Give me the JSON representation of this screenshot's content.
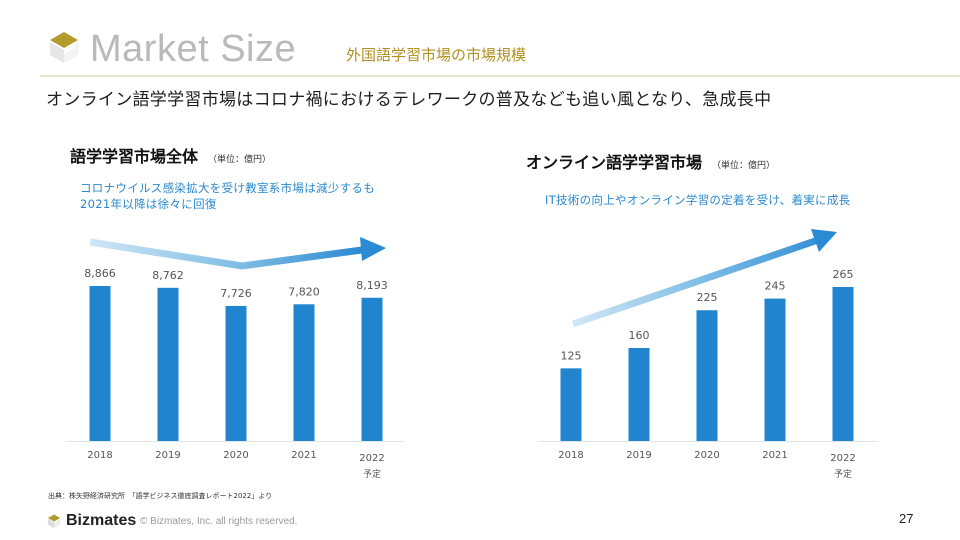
{
  "header": {
    "title": "Market Size",
    "subtitle": "外国語学習市場の市場規模",
    "accent_color": "#b09021"
  },
  "headline": "オンライン語学学習市場はコロナ禍におけるテレワークの普及なども追い風となり、急成長中",
  "charts": {
    "left": {
      "title": "語学学習市場全体",
      "unit": "（単位：億円）",
      "note": "コロナウイルス感染拡大を受け教室系市場は減少するも2021年以降は徐々に回復"
    },
    "right": {
      "title": "オンライン語学学習市場",
      "unit": "（単位：億円）",
      "note": "IT技術の向上やオンライン学習の定着を受け、着実に成長"
    }
  },
  "chart_data": [
    {
      "type": "bar",
      "title": "語学学習市場全体",
      "unit": "億円",
      "categories": [
        "2018",
        "2019",
        "2020",
        "2021",
        "2022"
      ],
      "category_sublabels": [
        "",
        "",
        "",
        "",
        "予定"
      ],
      "values": [
        8866,
        8762,
        7726,
        7820,
        8193
      ],
      "value_labels": [
        "8,866",
        "8,762",
        "7,726",
        "7,820",
        "8,193"
      ],
      "ylim": [
        0,
        8866
      ],
      "grid": false,
      "bar_color": "#2184cf",
      "trend_arrow": "down-then-up"
    },
    {
      "type": "bar",
      "title": "オンライン語学学習市場",
      "unit": "億円",
      "categories": [
        "2018",
        "2019",
        "2020",
        "2021",
        "2022"
      ],
      "category_sublabels": [
        "",
        "",
        "",
        "",
        "予定"
      ],
      "values": [
        125,
        160,
        225,
        245,
        265
      ],
      "value_labels": [
        "125",
        "160",
        "225",
        "245",
        "265"
      ],
      "ylim": [
        0,
        265
      ],
      "grid": false,
      "bar_color": "#2184cf",
      "trend_arrow": "up"
    }
  ],
  "footer": {
    "source": "出典：株矢野経済研究所　「語学ビジネス徹底調査レポート2022」より",
    "brand": "Bizmates",
    "copyright": "© Bizmates, Inc. all rights reserved.",
    "page_number": "27"
  }
}
